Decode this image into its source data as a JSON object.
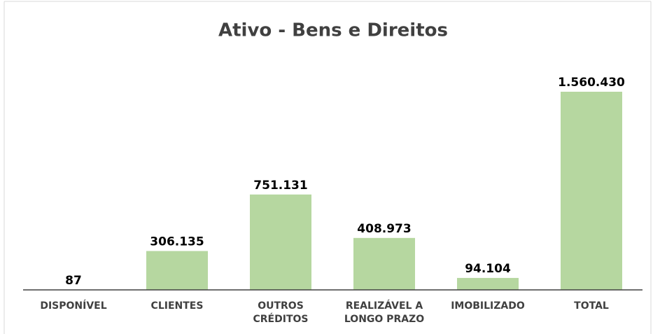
{
  "chart_data": {
    "type": "bar",
    "title": "Ativo - Bens e Direitos",
    "categories": [
      "DISPONÍVEL",
      "CLIENTES",
      "OUTROS CRÉDITOS",
      "REALIZÁVEL A LONGO PRAZO",
      "IMOBILIZADO",
      "TOTAL"
    ],
    "values": [
      87,
      306135,
      751131,
      408973,
      94104,
      1560430
    ],
    "value_labels": [
      "87",
      "306.135",
      "751.131",
      "408.973",
      "94.104",
      "1.560.430"
    ],
    "color": "#b6d7a0"
  }
}
